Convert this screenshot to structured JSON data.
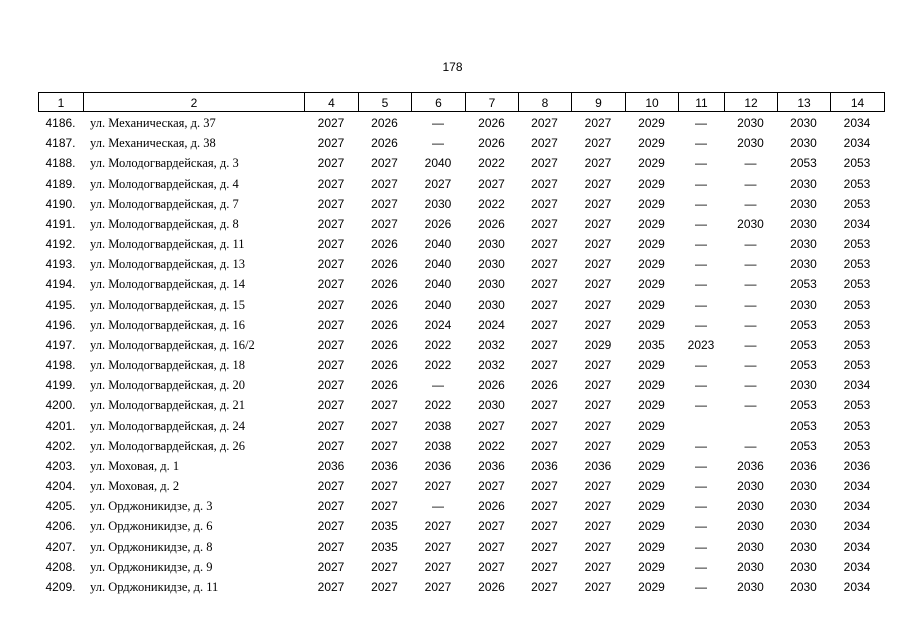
{
  "page_number": "178",
  "table": {
    "header": [
      "1",
      "2",
      "4",
      "5",
      "6",
      "7",
      "8",
      "9",
      "10",
      "11",
      "12",
      "13",
      "14"
    ],
    "rows": [
      [
        "4186.",
        "ул. Механическая, д. 37",
        2027,
        2026,
        "—",
        2026,
        2027,
        2027,
        2029,
        "—",
        2030,
        2030,
        2034
      ],
      [
        "4187.",
        "ул. Механическая, д. 38",
        2027,
        2026,
        "—",
        2026,
        2027,
        2027,
        2029,
        "—",
        2030,
        2030,
        2034
      ],
      [
        "4188.",
        "ул. Молодогвардейская, д. 3",
        2027,
        2027,
        2040,
        2022,
        2027,
        2027,
        2029,
        "—",
        "—",
        2053,
        2053
      ],
      [
        "4189.",
        "ул. Молодогвардейская, д. 4",
        2027,
        2027,
        2027,
        2027,
        2027,
        2027,
        2029,
        "—",
        "—",
        2030,
        2053
      ],
      [
        "4190.",
        "ул. Молодогвардейская, д. 7",
        2027,
        2027,
        2030,
        2022,
        2027,
        2027,
        2029,
        "—",
        "—",
        2030,
        2053
      ],
      [
        "4191.",
        "ул. Молодогвардейская, д. 8",
        2027,
        2027,
        2026,
        2026,
        2027,
        2027,
        2029,
        "—",
        2030,
        2030,
        2034
      ],
      [
        "4192.",
        "ул. Молодогвардейская, д. 11",
        2027,
        2026,
        2040,
        2030,
        2027,
        2027,
        2029,
        "—",
        "—",
        2030,
        2053
      ],
      [
        "4193.",
        "ул. Молодогвардейская, д. 13",
        2027,
        2026,
        2040,
        2030,
        2027,
        2027,
        2029,
        "—",
        "—",
        2030,
        2053
      ],
      [
        "4194.",
        "ул. Молодогвардейская, д. 14",
        2027,
        2026,
        2040,
        2030,
        2027,
        2027,
        2029,
        "—",
        "—",
        2053,
        2053
      ],
      [
        "4195.",
        "ул. Молодогвардейская, д. 15",
        2027,
        2026,
        2040,
        2030,
        2027,
        2027,
        2029,
        "—",
        "—",
        2030,
        2053
      ],
      [
        "4196.",
        "ул. Молодогвардейская, д. 16",
        2027,
        2026,
        2024,
        2024,
        2027,
        2027,
        2029,
        "—",
        "—",
        2053,
        2053
      ],
      [
        "4197.",
        "ул. Молодогвардейская, д. 16/2",
        2027,
        2026,
        2022,
        2032,
        2027,
        2029,
        2035,
        2023,
        "—",
        2053,
        2053
      ],
      [
        "4198.",
        "ул. Молодогвардейская, д. 18",
        2027,
        2026,
        2022,
        2032,
        2027,
        2027,
        2029,
        "—",
        "—",
        2053,
        2053
      ],
      [
        "4199.",
        "ул. Молодогвардейская, д. 20",
        2027,
        2026,
        "—",
        2026,
        2026,
        2027,
        2029,
        "—",
        "—",
        2030,
        2034
      ],
      [
        "4200.",
        "ул. Молодогвардейская, д. 21",
        2027,
        2027,
        2022,
        2030,
        2027,
        2027,
        2029,
        "—",
        "—",
        2053,
        2053
      ],
      [
        "4201.",
        "ул. Молодогвардейская, д. 24",
        2027,
        2027,
        2038,
        2027,
        2027,
        2027,
        2029,
        null,
        null,
        2053,
        2053
      ],
      [
        "4202.",
        "ул. Молодогвардейская, д. 26",
        2027,
        2027,
        2038,
        2022,
        2027,
        2027,
        2029,
        "—",
        "—",
        2053,
        2053
      ],
      [
        "4203.",
        "ул. Моховая, д. 1",
        2036,
        2036,
        2036,
        2036,
        2036,
        2036,
        2029,
        "—",
        2036,
        2036,
        2036
      ],
      [
        "4204.",
        "ул. Моховая, д. 2",
        2027,
        2027,
        2027,
        2027,
        2027,
        2027,
        2029,
        "—",
        2030,
        2030,
        2034
      ],
      [
        "4205.",
        "ул. Орджоникидзе, д. 3",
        2027,
        2027,
        "—",
        2026,
        2027,
        2027,
        2029,
        "—",
        2030,
        2030,
        2034
      ],
      [
        "4206.",
        "ул. Орджоникидзе, д. 6",
        2027,
        2035,
        2027,
        2027,
        2027,
        2027,
        2029,
        "—",
        2030,
        2030,
        2034
      ],
      [
        "4207.",
        "ул. Орджоникидзе, д. 8",
        2027,
        2035,
        2027,
        2027,
        2027,
        2027,
        2029,
        "—",
        2030,
        2030,
        2034
      ],
      [
        "4208.",
        "ул. Орджоникидзе, д. 9",
        2027,
        2027,
        2027,
        2027,
        2027,
        2027,
        2029,
        "—",
        2030,
        2030,
        2034
      ],
      [
        "4209.",
        "ул. Орджоникидзе, д. 11",
        2027,
        2027,
        2027,
        2026,
        2027,
        2027,
        2029,
        "—",
        2030,
        2030,
        2034
      ]
    ]
  }
}
